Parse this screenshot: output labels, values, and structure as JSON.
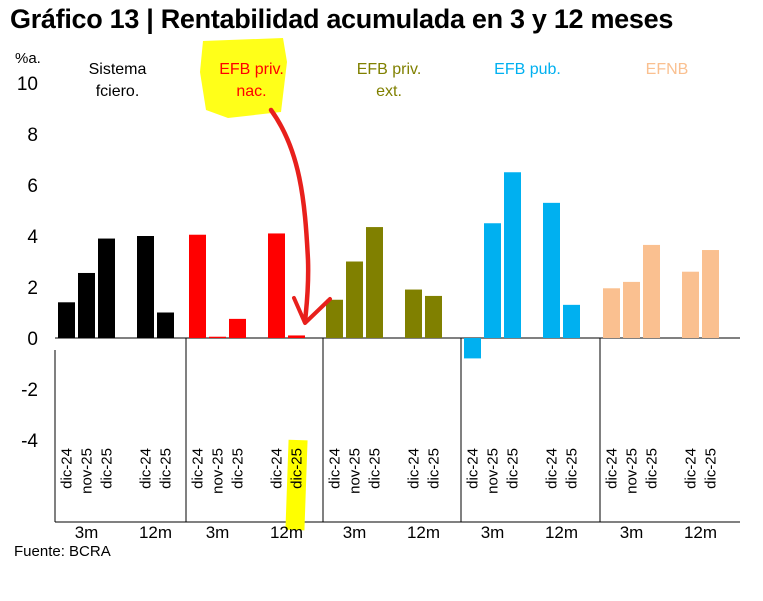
{
  "title": "Gráfico 13 | Rentabilidad acumulada en 3 y 12 meses",
  "source": "Fuente: BCRA",
  "chart_data": {
    "type": "bar",
    "y_unit": "%a.",
    "ylim": [
      -4,
      10
    ],
    "y_ticks": [
      10,
      8,
      6,
      4,
      2,
      0,
      -2,
      -4
    ],
    "grid": false,
    "groups": [
      {
        "name_lines": [
          "Sistema",
          "fciero."
        ],
        "color": "#000000",
        "highlighted": false,
        "periods": [
          {
            "label": "3m",
            "categories": [
              "dic-24",
              "nov-25",
              "dic-25"
            ],
            "values": [
              1.4,
              2.55,
              3.9
            ]
          },
          {
            "label": "12m",
            "categories": [
              "dic-24",
              "dic-25"
            ],
            "values": [
              4.0,
              1.0
            ]
          }
        ]
      },
      {
        "name_lines": [
          "EFB priv.",
          "nac."
        ],
        "color": "#ff0000",
        "highlighted": true,
        "periods": [
          {
            "label": "3m",
            "categories": [
              "dic-24",
              "nov-25",
              "dic-25"
            ],
            "values": [
              4.05,
              0.05,
              0.75
            ]
          },
          {
            "label": "12m",
            "categories": [
              "dic-24",
              "dic-25"
            ],
            "values": [
              4.1,
              0.1
            ]
          }
        ]
      },
      {
        "name_lines": [
          "EFB priv.",
          "ext."
        ],
        "color": "#808000",
        "highlighted": false,
        "periods": [
          {
            "label": "3m",
            "categories": [
              "dic-24",
              "nov-25",
              "dic-25"
            ],
            "values": [
              1.5,
              3.0,
              4.35
            ]
          },
          {
            "label": "12m",
            "categories": [
              "dic-24",
              "dic-25"
            ],
            "values": [
              1.9,
              1.65
            ]
          }
        ]
      },
      {
        "name_lines": [
          "EFB pub."
        ],
        "color": "#00b0f0",
        "highlighted": false,
        "periods": [
          {
            "label": "3m",
            "categories": [
              "dic-24",
              "nov-25",
              "dic-25"
            ],
            "values": [
              -0.8,
              4.5,
              6.5
            ]
          },
          {
            "label": "12m",
            "categories": [
              "dic-24",
              "dic-25"
            ],
            "values": [
              5.3,
              1.3
            ]
          }
        ]
      },
      {
        "name_lines": [
          "EFNB"
        ],
        "color": "#fac090",
        "highlighted": false,
        "periods": [
          {
            "label": "3m",
            "categories": [
              "dic-24",
              "nov-25",
              "dic-25"
            ],
            "values": [
              1.95,
              2.2,
              3.65
            ]
          },
          {
            "label": "12m",
            "categories": [
              "dic-24",
              "dic-25"
            ],
            "values": [
              2.6,
              3.45
            ]
          }
        ]
      }
    ],
    "annotations": {
      "highlight_color": "#ffff00",
      "arrow_color": "#e8201c",
      "highlighted_tick": "dic-25"
    }
  }
}
